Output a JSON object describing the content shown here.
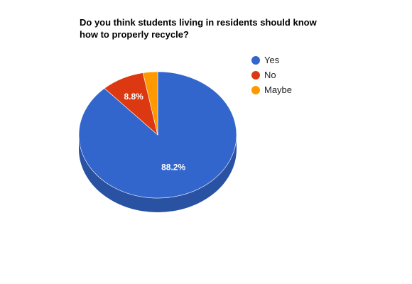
{
  "chart_data": {
    "type": "pie",
    "title_lines": [
      "Do you think students living in residents should know",
      "how to properly recycle?"
    ],
    "three_d": true,
    "legend_position": "right",
    "slices": [
      {
        "name": "Yes",
        "value": 88.2,
        "label": "88.2%",
        "color": "#3366cc",
        "side_color": "#2a52a3"
      },
      {
        "name": "No",
        "value": 8.8,
        "label": "8.8%",
        "color": "#dc3912",
        "side_color": "#b02e0e"
      },
      {
        "name": "Maybe",
        "value": 3.0,
        "label": "",
        "color": "#ff9900",
        "side_color": "#cc7a00"
      }
    ]
  }
}
